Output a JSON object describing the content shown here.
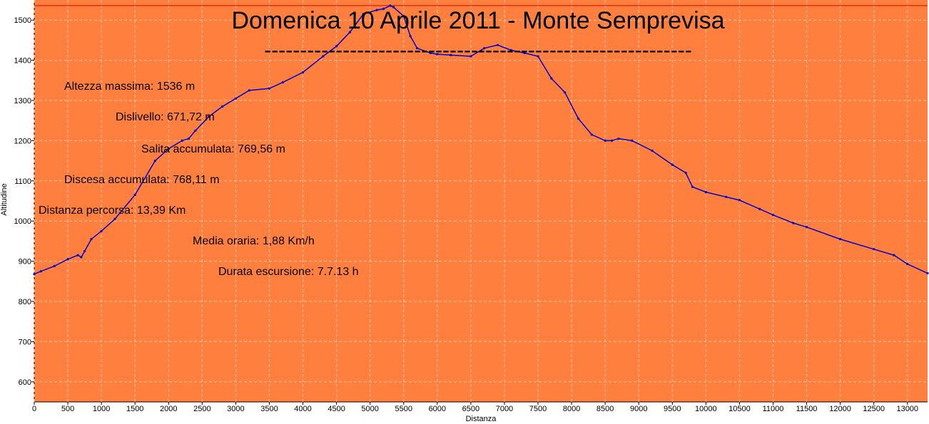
{
  "chart_data": {
    "type": "area",
    "title": "Domenica 10 Aprile 2011 - Monte Semprevisa",
    "subtitle": "------------------------------------------------------------",
    "xlabel": "Distanza",
    "ylabel": "Altitudine",
    "xlim": [
      0,
      13300
    ],
    "ylim": [
      550,
      1550
    ],
    "grid": true,
    "colors": {
      "background": "#ff7f3f",
      "line": "#0000cc",
      "max_line": "#dd0000",
      "grid": "#f3c8a8"
    },
    "x_ticks": [
      0,
      500,
      1000,
      1500,
      2000,
      2500,
      3000,
      3500,
      4000,
      4500,
      5000,
      5500,
      6000,
      6500,
      7000,
      7500,
      8000,
      8500,
      9000,
      9500,
      10000,
      10500,
      11000,
      11500,
      12000,
      12500,
      13000
    ],
    "y_ticks": [
      600,
      700,
      800,
      900,
      1000,
      1100,
      1200,
      1300,
      1400,
      1500
    ],
    "max_altitude_line": 1536,
    "x": [
      0,
      100,
      300,
      500,
      650,
      700,
      750,
      850,
      1000,
      1200,
      1500,
      1800,
      2000,
      2200,
      2300,
      2400,
      2600,
      2800,
      3000,
      3200,
      3500,
      3700,
      4000,
      4300,
      4500,
      4700,
      4900,
      5100,
      5200,
      5300,
      5350,
      5500,
      5600,
      5700,
      5900,
      6000,
      6200,
      6500,
      6700,
      6900,
      7100,
      7300,
      7500,
      7700,
      7900,
      8100,
      8300,
      8500,
      8600,
      8700,
      8900,
      9200,
      9500,
      9700,
      9800,
      10000,
      10300,
      10500,
      10800,
      11000,
      11300,
      11500,
      12000,
      12500,
      12800,
      13000,
      13300
    ],
    "y": [
      868,
      875,
      888,
      905,
      915,
      910,
      925,
      955,
      975,
      1005,
      1065,
      1150,
      1180,
      1200,
      1205,
      1225,
      1260,
      1285,
      1305,
      1325,
      1330,
      1345,
      1370,
      1410,
      1435,
      1470,
      1515,
      1525,
      1528,
      1536,
      1532,
      1510,
      1460,
      1430,
      1418,
      1415,
      1413,
      1410,
      1430,
      1438,
      1425,
      1418,
      1410,
      1355,
      1320,
      1255,
      1215,
      1200,
      1200,
      1205,
      1200,
      1175,
      1140,
      1120,
      1085,
      1072,
      1060,
      1052,
      1030,
      1015,
      995,
      985,
      955,
      930,
      915,
      893,
      870
    ]
  },
  "stats": [
    "Altezza massima: 1536 m",
    "Dislivello: 671,72 m",
    "Salita accumulata: 769,56 m",
    "Discesa accumulata: 768,11 m",
    "Distanza percorsa: 13,39 Km",
    "Media oraria: 1,88 Km/h",
    "Durata escursione: 7.7.13 h"
  ]
}
